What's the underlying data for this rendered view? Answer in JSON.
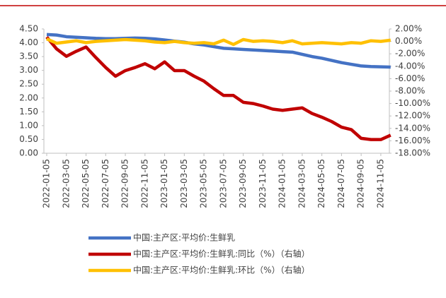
{
  "chart_data": {
    "type": "line",
    "categories": [
      "2022-01-05",
      null,
      "2022-03-05",
      null,
      "2022-05-05",
      null,
      "2022-07-05",
      null,
      "2022-09-05",
      null,
      "2022-11-05",
      null,
      "2023-01-05",
      null,
      "2023-03-05",
      null,
      "2023-05-05",
      null,
      "2023-07-05",
      null,
      "2023-09-05",
      null,
      "2023-11-05",
      null,
      "2024-01-05",
      null,
      "2024-03-05",
      null,
      "2024-05-05",
      null,
      "2024-07-05",
      null,
      "2024-09-05",
      null,
      "2024-11-05",
      null
    ],
    "series": [
      {
        "name": "中国:主产区:平均价:生鲜乳",
        "color": "#4472c4",
        "values": [
          4.3,
          4.28,
          4.22,
          4.2,
          4.18,
          4.16,
          4.15,
          4.15,
          4.16,
          4.17,
          4.16,
          4.14,
          4.1,
          4.06,
          4.02,
          3.96,
          3.92,
          3.86,
          3.8,
          3.78,
          3.76,
          3.74,
          3.72,
          3.7,
          3.68,
          3.66,
          3.58,
          3.5,
          3.44,
          3.36,
          3.28,
          3.22,
          3.16,
          3.14,
          3.13,
          3.12
        ]
      },
      {
        "name": "中国:主产区:平均价:生鲜乳:同比（%）（右轴）",
        "color": "#c00000",
        "axis": "y2",
        "values": [
          0.7,
          -1.2,
          -2.4,
          -1.6,
          -0.9,
          -2.6,
          -4.2,
          -5.6,
          -4.7,
          -4.2,
          -3.6,
          -4.4,
          -3.3,
          -4.7,
          -4.7,
          -5.6,
          -6.4,
          -7.6,
          -8.7,
          -8.7,
          -9.8,
          -10.0,
          -10.4,
          -10.9,
          -11.1,
          -10.9,
          -10.7,
          -11.6,
          -12.2,
          -12.9,
          -13.8,
          -14.2,
          -15.6,
          -15.8,
          -15.8,
          -15.1
        ]
      },
      {
        "name": "中国:主产区:平均价:生鲜乳:环比（%）（右轴）",
        "color": "#ffc000",
        "axis": "y2",
        "values": [
          0.4,
          -0.3,
          -0.1,
          0.1,
          -0.2,
          0.0,
          0.1,
          0.2,
          0.3,
          0.2,
          0.1,
          -0.1,
          -0.2,
          0.0,
          -0.2,
          -0.3,
          -0.2,
          -0.4,
          0.2,
          -0.5,
          0.3,
          0.0,
          0.1,
          0.0,
          -0.2,
          0.1,
          -0.4,
          -0.3,
          -0.2,
          -0.3,
          -0.4,
          -0.2,
          -0.3,
          0.1,
          0.0,
          0.2
        ]
      }
    ],
    "ylim": [
      0,
      4.5
    ],
    "yticks": [
      {
        "value": 0,
        "label": "0.00"
      },
      {
        "value": 0.5,
        "label": "0.50"
      },
      {
        "value": 1,
        "label": "1.00"
      },
      {
        "value": 1.5,
        "label": "1.50"
      },
      {
        "value": 2,
        "label": "2.00"
      },
      {
        "value": 2.5,
        "label": "2.50"
      },
      {
        "value": 3,
        "label": "3.00"
      },
      {
        "value": 3.5,
        "label": "3.50"
      },
      {
        "value": 4,
        "label": "4.00"
      },
      {
        "value": 4.5,
        "label": "4.50"
      }
    ],
    "y2lim": [
      -18,
      2
    ],
    "y2ticks": [
      {
        "value": 2,
        "label": "2.00%"
      },
      {
        "value": 0,
        "label": "0.00%"
      },
      {
        "value": -2,
        "label": "-2.00%"
      },
      {
        "value": -4,
        "label": "-4.00%"
      },
      {
        "value": -6,
        "label": "-6.00%"
      },
      {
        "value": -8,
        "label": "-8.00%"
      },
      {
        "value": -10,
        "label": "-10.00%"
      },
      {
        "value": -12,
        "label": "-12.00%"
      },
      {
        "value": -14,
        "label": "-14.00%"
      },
      {
        "value": -16,
        "label": "-16.00%"
      },
      {
        "value": -18,
        "label": "-18.00%"
      }
    ],
    "legend": "bottom"
  }
}
